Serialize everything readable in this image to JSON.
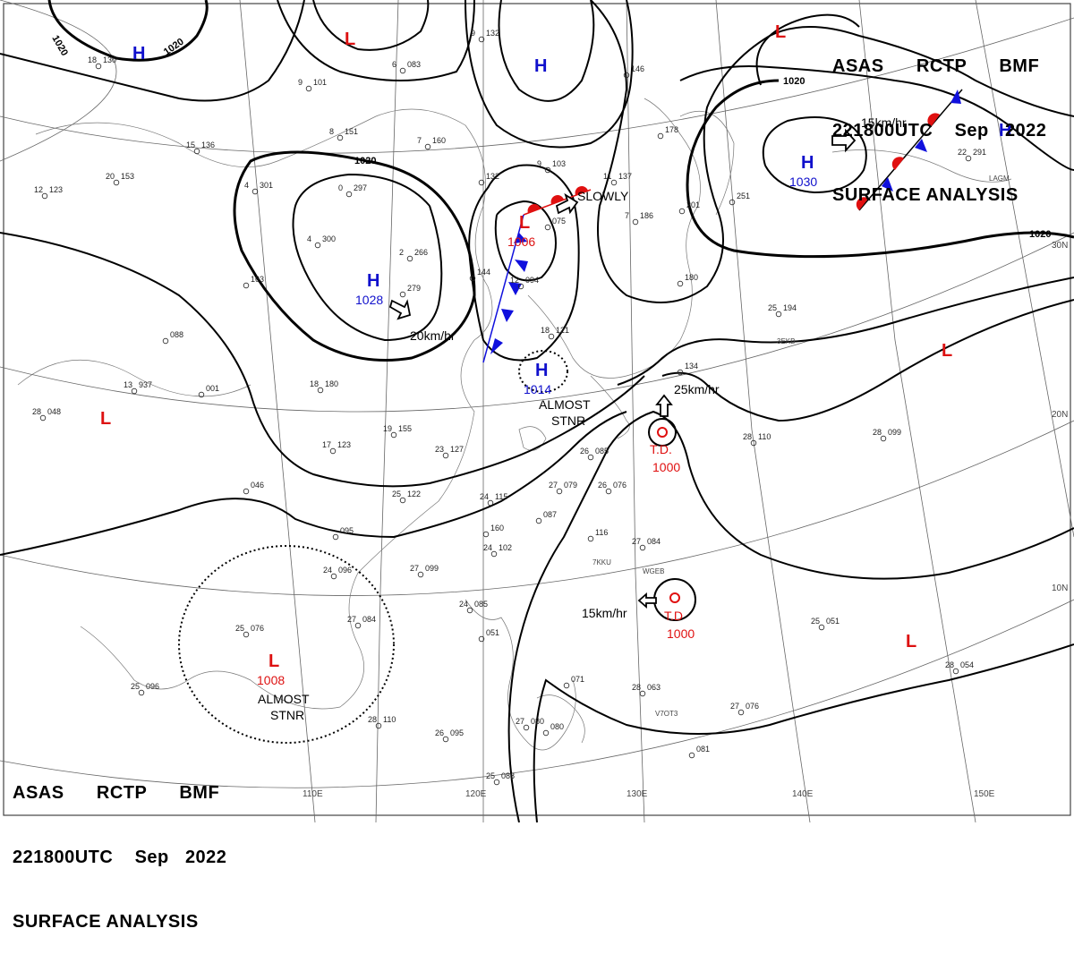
{
  "header": {
    "line1": [
      "ASAS",
      "RCTP",
      "BMF"
    ],
    "line2": [
      "221800UTC",
      "Sep",
      "2022"
    ],
    "line3": "SURFACE ANALYSIS"
  },
  "isobar_labels": [
    "1020",
    "1020",
    "1020",
    "1020",
    "1020"
  ],
  "pressure_centers": [
    {
      "type": "H",
      "value": "",
      "color": "#1010cc"
    },
    {
      "type": "H",
      "value": "",
      "color": "#1010cc"
    },
    {
      "type": "H",
      "value": "1030",
      "color": "#1010cc"
    },
    {
      "type": "H",
      "value": "",
      "color": "#1010cc"
    },
    {
      "type": "H",
      "value": "1028",
      "color": "#1010cc"
    },
    {
      "type": "H",
      "value": "1014",
      "color": "#1010cc"
    },
    {
      "type": "L",
      "value": "",
      "color": "#dd1111"
    },
    {
      "type": "L",
      "value": "",
      "color": "#dd1111"
    },
    {
      "type": "L",
      "value": "1006",
      "color": "#dd1111"
    },
    {
      "type": "L",
      "value": "",
      "color": "#dd1111"
    },
    {
      "type": "L",
      "value": "",
      "color": "#dd1111"
    },
    {
      "type": "L",
      "value": "",
      "color": "#dd1111"
    },
    {
      "type": "L",
      "value": "1008",
      "color": "#dd1111"
    }
  ],
  "tropical_depressions": [
    {
      "label": "T.D.",
      "pressure": "1000"
    },
    {
      "label": "T.D",
      "pressure": "1000"
    }
  ],
  "movement_labels": [
    "15km/hr",
    "20km/hr",
    "SLOWLY",
    "25km/hr",
    "15km/hr"
  ],
  "annotations": [
    {
      "line1": "ALMOST",
      "line2": "STNR"
    },
    {
      "line1": "ALMOST",
      "line2": "STNR"
    }
  ],
  "latitude_labels": [
    "30N",
    "20N",
    "10N"
  ],
  "longitude_labels": [
    "110E",
    "120E",
    "130E",
    "140E",
    "150E"
  ],
  "station_plots": [
    {
      "t": "18",
      "p": "130"
    },
    {
      "t": "15",
      "p": "136"
    },
    {
      "t": "20",
      "p": "153"
    },
    {
      "t": "12",
      "p": "123"
    },
    {
      "t": "6",
      "p": "083"
    },
    {
      "t": "9",
      "p": "101"
    },
    {
      "t": "8",
      "p": "151"
    },
    {
      "t": "7",
      "p": "160"
    },
    {
      "t": "4",
      "p": "301"
    },
    {
      "t": "0",
      "p": "297"
    },
    {
      "t": "4",
      "p": "300"
    },
    {
      "t": "2",
      "p": "266"
    },
    {
      "t": "",
      "p": "279"
    },
    {
      "t": "",
      "p": "163"
    },
    {
      "t": "9",
      "p": "132"
    },
    {
      "t": "9",
      "p": "103"
    },
    {
      "t": "11",
      "p": "137"
    },
    {
      "t": "",
      "p": "075"
    },
    {
      "t": "7",
      "p": "186"
    },
    {
      "t": "",
      "p": "201"
    },
    {
      "t": "",
      "p": "178"
    },
    {
      "t": "",
      "p": "146"
    },
    {
      "t": "",
      "p": "144"
    },
    {
      "t": "12",
      "p": "094"
    },
    {
      "t": "18",
      "p": "121"
    },
    {
      "t": "",
      "p": "088"
    },
    {
      "t": "13",
      "p": "937"
    },
    {
      "t": "",
      "p": "001"
    },
    {
      "t": "18",
      "p": "180"
    },
    {
      "t": "28",
      "p": "048"
    },
    {
      "t": "19",
      "p": "155"
    },
    {
      "t": "23",
      "p": "127"
    },
    {
      "t": "17",
      "p": "123"
    },
    {
      "t": "",
      "p": "046"
    },
    {
      "t": "25",
      "p": "122"
    },
    {
      "t": "24",
      "p": "115"
    },
    {
      "t": "",
      "p": "087"
    },
    {
      "t": "26",
      "p": "085"
    },
    {
      "t": "27",
      "p": "079"
    },
    {
      "t": "26",
      "p": "076"
    },
    {
      "t": "",
      "p": "116"
    },
    {
      "t": "27",
      "p": "084"
    },
    {
      "t": "",
      "p": "160"
    },
    {
      "t": "24",
      "p": "102"
    },
    {
      "t": "",
      "p": "095"
    },
    {
      "t": "24",
      "p": "096"
    },
    {
      "t": "27",
      "p": "099"
    },
    {
      "t": "27",
      "p": "084"
    },
    {
      "t": "25",
      "p": "076"
    },
    {
      "t": "24",
      "p": "085"
    },
    {
      "t": "",
      "p": "051"
    },
    {
      "t": "25",
      "p": "096"
    },
    {
      "t": "28",
      "p": "110"
    },
    {
      "t": "26",
      "p": "095"
    },
    {
      "t": "25",
      "p": "088"
    },
    {
      "t": "27",
      "p": "080"
    },
    {
      "t": "",
      "p": "080"
    },
    {
      "t": "",
      "p": "071"
    },
    {
      "t": "28",
      "p": "063"
    },
    {
      "t": "27",
      "p": "076"
    },
    {
      "t": "",
      "p": "081"
    },
    {
      "t": "25",
      "p": "051"
    },
    {
      "t": "28",
      "p": "054"
    },
    {
      "t": "28",
      "p": "110"
    },
    {
      "t": "28",
      "p": "099"
    },
    {
      "t": "25",
      "p": "194"
    },
    {
      "t": "",
      "p": "180"
    },
    {
      "t": "22",
      "p": "291"
    },
    {
      "t": "",
      "p": "134"
    },
    {
      "t": "",
      "p": "251"
    },
    {
      "t": "",
      "p": "132"
    }
  ],
  "station_ids": [
    "7KKU",
    "WGEB",
    "V7OT3",
    "3EKB",
    "LAGM"
  ]
}
